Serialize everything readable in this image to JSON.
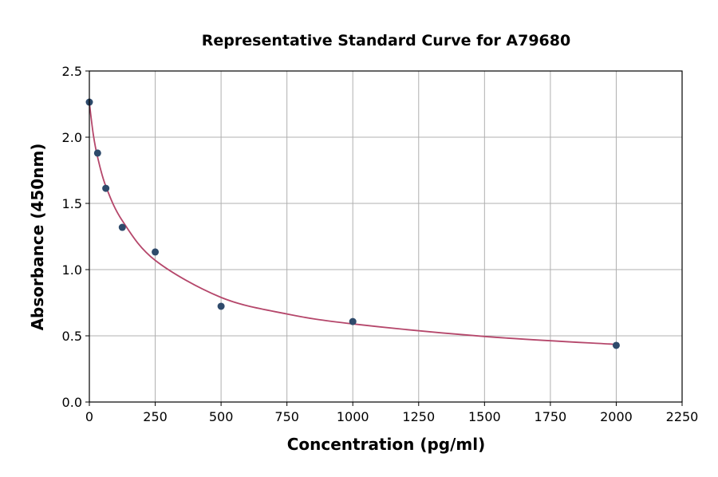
{
  "chart_data": {
    "type": "scatter",
    "title": "Representative Standard Curve for A79680",
    "xlabel": "Concentration (pg/ml)",
    "ylabel": "Absorbance (450nm)",
    "xlim": [
      0,
      2250
    ],
    "ylim": [
      0,
      2.5
    ],
    "xticks": [
      0,
      250,
      500,
      750,
      1000,
      1250,
      1500,
      1750,
      2000,
      2250
    ],
    "yticks": [
      0.0,
      0.5,
      1.0,
      1.5,
      2.0,
      2.5
    ],
    "grid": true,
    "points": {
      "x": [
        0,
        31.25,
        62.5,
        125,
        250,
        500,
        1000,
        2000
      ],
      "y": [
        2.265,
        1.88,
        1.614,
        1.319,
        1.133,
        0.723,
        0.608,
        0.428
      ],
      "color": "#2e4a6b"
    },
    "fit_curve": {
      "x": [
        0,
        15,
        31.25,
        62.5,
        125,
        250,
        500,
        750,
        1000,
        1500,
        2000
      ],
      "y": [
        2.26,
        2.02,
        1.85,
        1.63,
        1.37,
        1.07,
        0.79,
        0.665,
        0.59,
        0.495,
        0.435
      ],
      "color": "#b5476b"
    }
  }
}
